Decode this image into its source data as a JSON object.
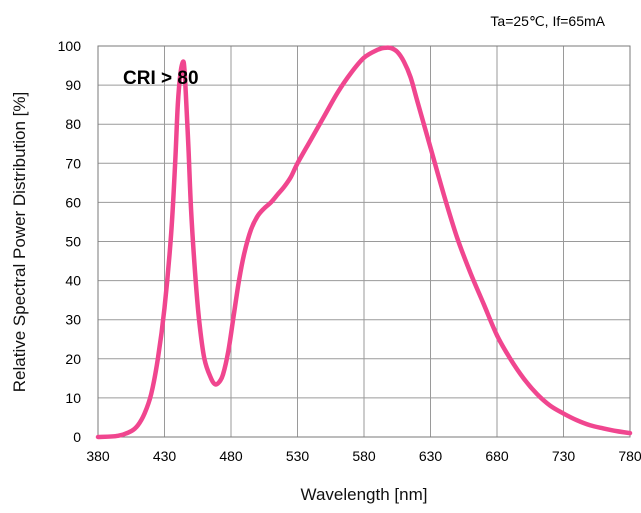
{
  "chart_data": {
    "type": "line",
    "xlabel": "Wavelength [nm]",
    "ylabel": "Relative Spectral Power Distribution [%]",
    "conditions": "Ta=25℃, If=65mA",
    "annotation": "CRI > 80",
    "xlim": [
      380,
      780
    ],
    "ylim": [
      0,
      100
    ],
    "x_ticks": [
      380,
      430,
      480,
      530,
      580,
      630,
      680,
      730,
      780
    ],
    "y_ticks": [
      0,
      10,
      20,
      30,
      40,
      50,
      60,
      70,
      80,
      90,
      100
    ],
    "grid": true,
    "line_color": "#f0468f",
    "series": [
      {
        "x": [
          380,
          395,
          405,
          410,
          415,
          420,
          425,
          430,
          435,
          438,
          440,
          442,
          444,
          445,
          446,
          448,
          450,
          453,
          456,
          460,
          465,
          468,
          471,
          474,
          478,
          482,
          486,
          490,
          495,
          500,
          505,
          510,
          515,
          520,
          525,
          530,
          540,
          550,
          560,
          570,
          580,
          590,
          595,
          600,
          605,
          610,
          615,
          620,
          630,
          640,
          650,
          660,
          670,
          680,
          690,
          700,
          710,
          720,
          730,
          740,
          750,
          760,
          770,
          780
        ],
        "y": [
          0,
          0.3,
          1.5,
          3,
          6,
          11,
          20,
          33,
          52,
          70,
          85,
          93,
          96,
          94,
          88,
          74,
          58,
          42,
          30,
          20,
          15,
          13.5,
          14,
          16,
          22,
          31,
          40,
          47,
          53,
          56.5,
          58.5,
          60,
          62,
          64,
          66.5,
          70,
          76,
          82,
          88,
          93,
          97,
          99,
          99.5,
          99.5,
          98.5,
          96,
          92,
          86,
          74,
          62,
          51,
          42,
          34,
          26,
          20,
          15,
          11,
          8,
          6,
          4.3,
          3,
          2.2,
          1.5,
          1
        ]
      }
    ]
  }
}
